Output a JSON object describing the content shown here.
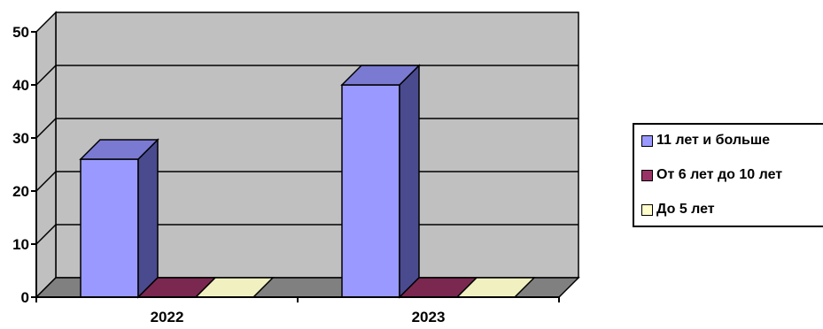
{
  "chart_data": {
    "type": "bar",
    "three_d": true,
    "categories": [
      "2022",
      "2023"
    ],
    "series": [
      {
        "name": "11 лет и больше",
        "values": [
          26,
          40
        ],
        "color": "#9999ff",
        "side_color": "#4a4a8f",
        "top_color": "#7a7ad2"
      },
      {
        "name": "От 6 лет до 10 лет",
        "values": [
          0,
          0
        ],
        "color": "#993366",
        "side_color": "#5a1f3c",
        "top_color": "#7a2850"
      },
      {
        "name": "До 5 лет",
        "values": [
          0,
          0
        ],
        "color": "#ffffcc",
        "side_color": "#b8b890",
        "top_color": "#f0f0c0"
      }
    ],
    "yticks": [
      "0",
      "10",
      "20",
      "30",
      "40",
      "50"
    ],
    "ylim": [
      0,
      50
    ],
    "grid": true,
    "legend_position": "right",
    "colors": {
      "wall": "#c0c0c0",
      "floor": "#808080",
      "grid": "#000000"
    }
  }
}
